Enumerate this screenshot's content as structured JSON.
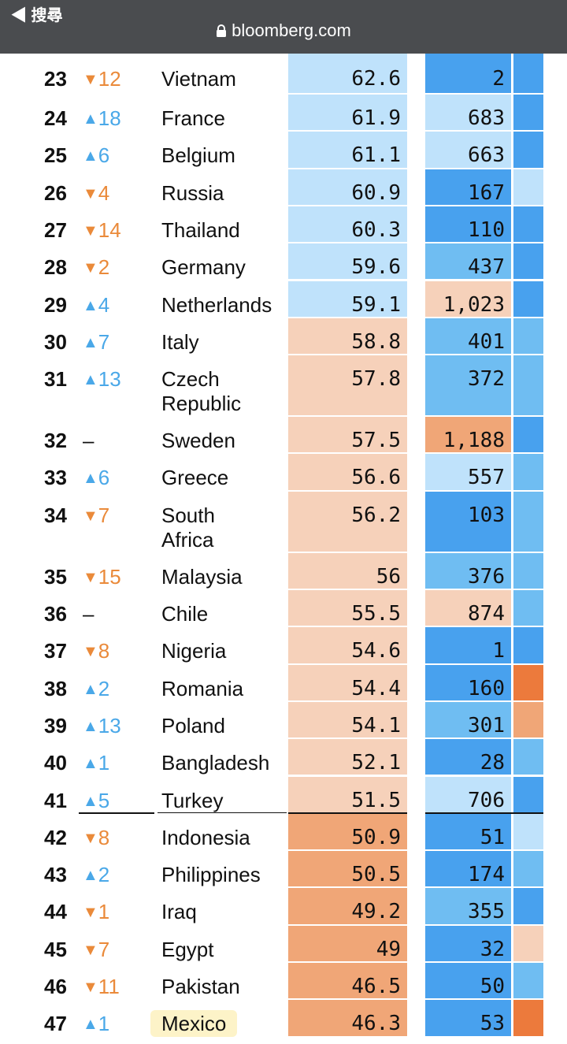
{
  "browser": {
    "back_label": "◀ 搜尋",
    "url": "bloomberg.com"
  },
  "colors": {
    "light_blue": "#bfe2fb",
    "mid_blue": "#6fbdf2",
    "blue": "#48a1ee",
    "light_orange": "#f6d1ba",
    "orange": "#f0a677",
    "dark_orange": "#ec7a3c",
    "highlight": "#fdf3c8"
  },
  "rows": [
    {
      "rank": "23",
      "dir": "down",
      "change": "12",
      "country": "Vietnam",
      "score": "62.6",
      "cases": "2",
      "score_color": "light_blue",
      "cases_color": "blue",
      "third_color": "blue"
    },
    {
      "rank": "24",
      "dir": "up",
      "change": "18",
      "country": "France",
      "score": "61.9",
      "cases": "683",
      "score_color": "light_blue",
      "cases_color": "light_blue",
      "third_color": "blue"
    },
    {
      "rank": "25",
      "dir": "up",
      "change": "6",
      "country": "Belgium",
      "score": "61.1",
      "cases": "663",
      "score_color": "light_blue",
      "cases_color": "light_blue",
      "third_color": "blue"
    },
    {
      "rank": "26",
      "dir": "down",
      "change": "4",
      "country": "Russia",
      "score": "60.9",
      "cases": "167",
      "score_color": "light_blue",
      "cases_color": "blue",
      "third_color": "light_blue"
    },
    {
      "rank": "27",
      "dir": "down",
      "change": "14",
      "country": "Thailand",
      "score": "60.3",
      "cases": "110",
      "score_color": "light_blue",
      "cases_color": "blue",
      "third_color": "blue"
    },
    {
      "rank": "28",
      "dir": "down",
      "change": "2",
      "country": "Germany",
      "score": "59.6",
      "cases": "437",
      "score_color": "light_blue",
      "cases_color": "mid_blue",
      "third_color": "blue"
    },
    {
      "rank": "29",
      "dir": "up",
      "change": "4",
      "country": "Netherlands",
      "score": "59.1",
      "cases": "1,023",
      "score_color": "light_blue",
      "cases_color": "light_orange",
      "third_color": "blue"
    },
    {
      "rank": "30",
      "dir": "up",
      "change": "7",
      "country": "Italy",
      "score": "58.8",
      "cases": "401",
      "score_color": "light_orange",
      "cases_color": "mid_blue",
      "third_color": "mid_blue"
    },
    {
      "rank": "31",
      "dir": "up",
      "change": "13",
      "country": "Czech Republic",
      "score": "57.8",
      "cases": "372",
      "score_color": "light_orange",
      "cases_color": "mid_blue",
      "third_color": "mid_blue"
    },
    {
      "rank": "32",
      "dir": "none",
      "change": "–",
      "country": "Sweden",
      "score": "57.5",
      "cases": "1,188",
      "score_color": "light_orange",
      "cases_color": "orange",
      "third_color": "blue"
    },
    {
      "rank": "33",
      "dir": "up",
      "change": "6",
      "country": "Greece",
      "score": "56.6",
      "cases": "557",
      "score_color": "light_orange",
      "cases_color": "light_blue",
      "third_color": "mid_blue"
    },
    {
      "rank": "34",
      "dir": "down",
      "change": "7",
      "country": "South Africa",
      "score": "56.2",
      "cases": "103",
      "score_color": "light_orange",
      "cases_color": "blue",
      "third_color": "mid_blue"
    },
    {
      "rank": "35",
      "dir": "down",
      "change": "15",
      "country": "Malaysia",
      "score": "56",
      "cases": "376",
      "score_color": "light_orange",
      "cases_color": "mid_blue",
      "third_color": "mid_blue"
    },
    {
      "rank": "36",
      "dir": "none",
      "change": "–",
      "country": "Chile",
      "score": "55.5",
      "cases": "874",
      "score_color": "light_orange",
      "cases_color": "light_orange",
      "third_color": "mid_blue"
    },
    {
      "rank": "37",
      "dir": "down",
      "change": "8",
      "country": "Nigeria",
      "score": "54.6",
      "cases": "1",
      "score_color": "light_orange",
      "cases_color": "blue",
      "third_color": "blue"
    },
    {
      "rank": "38",
      "dir": "up",
      "change": "2",
      "country": "Romania",
      "score": "54.4",
      "cases": "160",
      "score_color": "light_orange",
      "cases_color": "blue",
      "third_color": "dark_orange"
    },
    {
      "rank": "39",
      "dir": "up",
      "change": "13",
      "country": "Poland",
      "score": "54.1",
      "cases": "301",
      "score_color": "light_orange",
      "cases_color": "mid_blue",
      "third_color": "orange"
    },
    {
      "rank": "40",
      "dir": "up",
      "change": "1",
      "country": "Bangladesh",
      "score": "52.1",
      "cases": "28",
      "score_color": "light_orange",
      "cases_color": "blue",
      "third_color": "mid_blue"
    },
    {
      "rank": "41",
      "dir": "up",
      "change": "5",
      "country": "Turkey",
      "score": "51.5",
      "cases": "706",
      "score_color": "light_orange",
      "cases_color": "light_blue",
      "third_color": "blue"
    },
    {
      "rank": "42",
      "dir": "down",
      "change": "8",
      "country": "Indonesia",
      "score": "50.9",
      "cases": "51",
      "score_color": "orange",
      "cases_color": "blue",
      "third_color": "light_blue"
    },
    {
      "rank": "43",
      "dir": "up",
      "change": "2",
      "country": "Philippines",
      "score": "50.5",
      "cases": "174",
      "score_color": "orange",
      "cases_color": "blue",
      "third_color": "mid_blue"
    },
    {
      "rank": "44",
      "dir": "down",
      "change": "1",
      "country": "Iraq",
      "score": "49.2",
      "cases": "355",
      "score_color": "orange",
      "cases_color": "mid_blue",
      "third_color": "blue"
    },
    {
      "rank": "45",
      "dir": "down",
      "change": "7",
      "country": "Egypt",
      "score": "49",
      "cases": "32",
      "score_color": "orange",
      "cases_color": "blue",
      "third_color": "light_orange"
    },
    {
      "rank": "46",
      "dir": "down",
      "change": "11",
      "country": "Pakistan",
      "score": "46.5",
      "cases": "50",
      "score_color": "orange",
      "cases_color": "blue",
      "third_color": "mid_blue"
    },
    {
      "rank": "47",
      "dir": "up",
      "change": "1",
      "country": "Mexico",
      "score": "46.3",
      "cases": "53",
      "score_color": "orange",
      "cases_color": "blue",
      "third_color": "dark_orange",
      "highlighted": true
    }
  ]
}
